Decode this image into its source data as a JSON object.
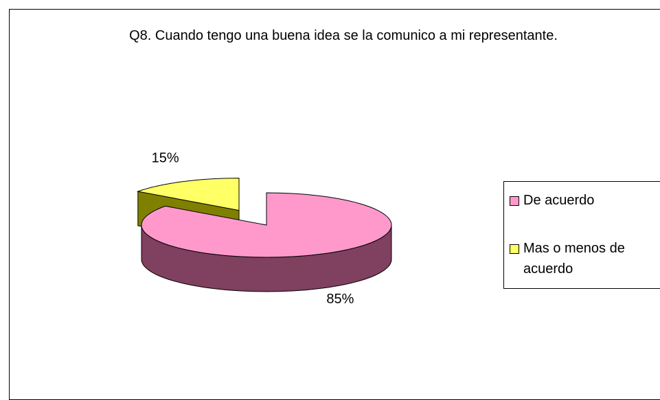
{
  "chart_data": {
    "type": "pie3d",
    "title": "Q8. Cuando tengo una buena idea se la comunico a mi representante.",
    "categories": [
      "De acuerdo",
      "Mas o menos de acuerdo"
    ],
    "values": [
      85,
      15
    ],
    "value_labels": [
      "85%",
      "15%"
    ],
    "colors": [
      "#ff99cc",
      "#ffff66"
    ],
    "side_colors": [
      "#804060",
      "#808000"
    ],
    "exploded": [
      false,
      true
    ],
    "legend": "right"
  }
}
